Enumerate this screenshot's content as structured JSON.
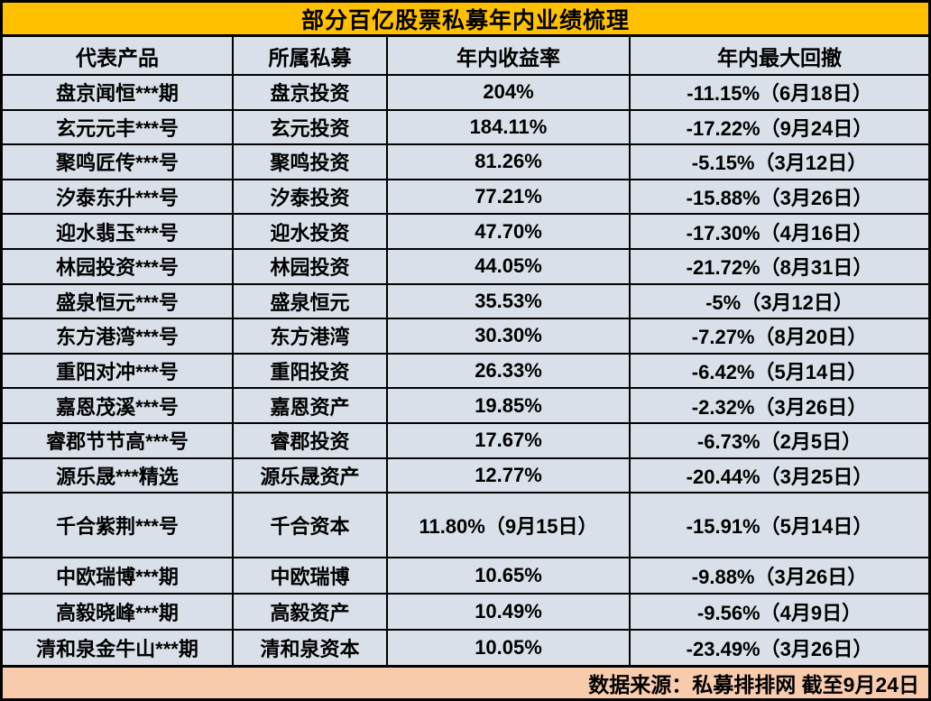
{
  "chart_data": {
    "type": "table",
    "title": "部分百亿股票私募年内业绩梳理",
    "columns": [
      "代表产品",
      "所属私募",
      "年内收益率",
      "年内最大回撤"
    ],
    "rows": [
      [
        "盘京闻恒***期",
        "盘京投资",
        "204%",
        "-11.15%（6月18日）"
      ],
      [
        "玄元元丰***号",
        "玄元投资",
        "184.11%",
        "-17.22%（9月24日）"
      ],
      [
        "聚鸣匠传***号",
        "聚鸣投资",
        "81.26%",
        "-5.15%（3月12日）"
      ],
      [
        "汐泰东升***号",
        "汐泰投资",
        "77.21%",
        "-15.88%（3月26日）"
      ],
      [
        "迎水翡玉***号",
        "迎水投资",
        "47.70%",
        "-17.30%（4月16日）"
      ],
      [
        "林园投资***号",
        "林园投资",
        "44.05%",
        "-21.72%（8月31日）"
      ],
      [
        "盛泉恒元***号",
        "盛泉恒元",
        "35.53%",
        "-5%（3月12日）"
      ],
      [
        "东方港湾***号",
        "东方港湾",
        "30.30%",
        "-7.27%（8月20日）"
      ],
      [
        "重阳对冲***号",
        "重阳投资",
        "26.33%",
        "-6.42%（5月14日）"
      ],
      [
        "嘉恩茂溪***号",
        "嘉恩资产",
        "19.85%",
        "-2.32%（3月26日）"
      ],
      [
        "睿郡节节高***号",
        "睿郡投资",
        "17.67%",
        "-6.73%（2月5日）"
      ],
      [
        "源乐晟***精选",
        "源乐晟资产",
        "12.77%",
        "-20.44%（3月25日）"
      ],
      [
        "千合紫荆***号",
        "千合资本",
        "11.80%（9月15日）",
        "-15.91%（5月14日）"
      ],
      [
        "中欧瑞博***期",
        "中欧瑞博",
        "10.65%",
        "-9.88%（3月26日）"
      ],
      [
        "高毅晓峰***期",
        "高毅资产",
        "10.49%",
        "-9.56%（4月9日）"
      ],
      [
        "清和泉金牛山***期",
        "清和泉资本",
        "10.05%",
        "-23.49%（3月26日）"
      ]
    ],
    "footnote": "数据来源：私募排排网 截至9月24日",
    "layout": {
      "tall_row_index": 12,
      "short_row_start_index": 13,
      "legend_position": "none",
      "grid": "on"
    }
  },
  "colors": {
    "title_bg": "#FFC000",
    "cell_bg": "#D9E0E9",
    "footer_bg": "#F8CBAD",
    "text": "#000000",
    "border": "#000000"
  }
}
